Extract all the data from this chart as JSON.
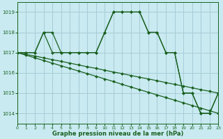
{
  "title": "Graphe pression niveau de la mer (hPa)",
  "bg_color": "#c8eaf0",
  "grid_color": "#a8ccd8",
  "line_color": "#1a6020",
  "xlim": [
    0,
    23
  ],
  "ylim": [
    1013.5,
    1019.5
  ],
  "yticks": [
    1014,
    1015,
    1016,
    1017,
    1018,
    1019
  ],
  "xticks": [
    0,
    1,
    2,
    3,
    4,
    5,
    6,
    7,
    8,
    9,
    10,
    11,
    12,
    13,
    14,
    15,
    16,
    17,
    18,
    19,
    20,
    21,
    22,
    23
  ],
  "series": [
    [
      1017.0,
      1017.0,
      1017.0,
      1018.0,
      1017.0,
      1017.0,
      1017.0,
      1017.0,
      1017.0,
      1017.0,
      1018.0,
      1019.0,
      1019.0,
      1019.0,
      1019.0,
      1018.0,
      1018.0,
      1017.0,
      1017.0,
      1015.0,
      1015.0,
      1014.0,
      1014.0,
      1015.0
    ],
    [
      1017.0,
      1017.0,
      1017.0,
      1018.0,
      1018.0,
      1017.0,
      1017.0,
      1017.0,
      1017.0,
      1017.0,
      1018.0,
      1019.0,
      1019.0,
      1019.0,
      1019.0,
      1018.0,
      1018.0,
      1017.0,
      1017.0,
      1015.0,
      1015.0,
      1014.0,
      1014.0,
      1015.0
    ],
    [
      1017.0,
      1016.87,
      1016.74,
      1016.61,
      1016.48,
      1016.35,
      1016.22,
      1016.09,
      1015.96,
      1015.83,
      1015.7,
      1015.57,
      1015.43,
      1015.3,
      1015.17,
      1015.04,
      1014.91,
      1014.78,
      1014.65,
      1014.52,
      1014.39,
      1014.26,
      1014.13,
      1014.0
    ],
    [
      1017.0,
      1016.91,
      1016.83,
      1016.74,
      1016.65,
      1016.57,
      1016.48,
      1016.39,
      1016.3,
      1016.22,
      1016.13,
      1016.04,
      1015.96,
      1015.87,
      1015.78,
      1015.7,
      1015.61,
      1015.52,
      1015.43,
      1015.35,
      1015.26,
      1015.17,
      1015.09,
      1015.0
    ]
  ]
}
